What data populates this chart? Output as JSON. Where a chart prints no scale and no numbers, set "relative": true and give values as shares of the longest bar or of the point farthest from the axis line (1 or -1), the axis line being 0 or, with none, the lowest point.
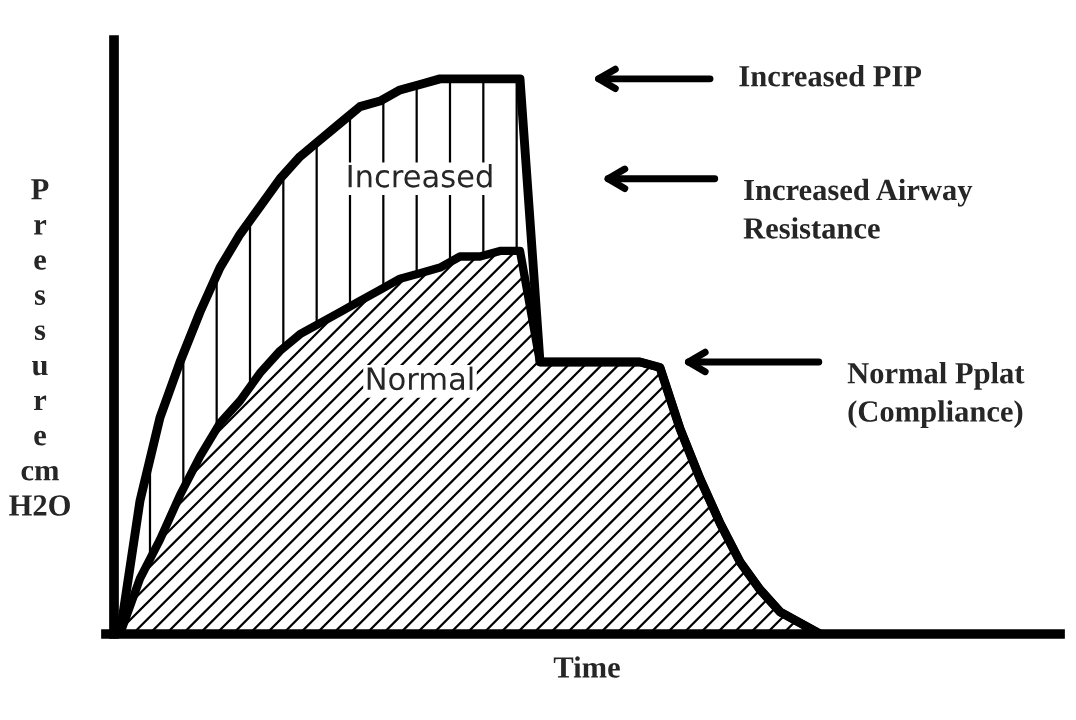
{
  "chart_data": {
    "type": "area",
    "relative": true,
    "xlabel": "Time",
    "ylabel": "Pressure cm H2O",
    "categories": [
      null,
      null,
      null,
      null,
      null,
      null,
      null,
      null,
      null,
      null,
      null,
      null,
      null,
      null,
      null,
      null,
      null,
      null,
      null,
      null,
      null,
      null,
      null,
      null,
      null,
      null,
      null,
      null,
      null,
      null,
      null,
      null,
      null,
      null,
      null,
      null
    ],
    "series": [
      {
        "name": "Increased",
        "color": "#000000",
        "values": [
          0,
          0.24,
          0.39,
          0.49,
          0.58,
          0.66,
          0.72,
          0.77,
          0.82,
          0.86,
          0.89,
          0.92,
          0.95,
          0.96,
          0.98,
          0.99,
          1,
          1,
          1,
          1,
          1,
          0.49,
          0.49,
          0.49,
          0.49,
          0.49,
          0.49,
          0.48,
          0.37,
          0.28,
          0.2,
          0.13,
          0.08,
          0.04,
          0.02,
          0
        ]
      },
      {
        "name": "Normal",
        "color": "#000000",
        "values": [
          0,
          0.1,
          0.17,
          0.25,
          0.32,
          0.38,
          0.42,
          0.47,
          0.51,
          0.54,
          0.56,
          0.58,
          0.6,
          0.62,
          0.64,
          0.65,
          0.66,
          0.68,
          0.68,
          0.69,
          0.69,
          0.49,
          0.49,
          0.49,
          0.49,
          0.49,
          0.49,
          0.48,
          0.37,
          0.28,
          0.2,
          0.13,
          0.08,
          0.04,
          0.02,
          0
        ]
      }
    ],
    "annotations": [
      "Increased PIP",
      "Increased Airway\nResistance",
      "Normal Pplat\n(Compliance)"
    ]
  }
}
